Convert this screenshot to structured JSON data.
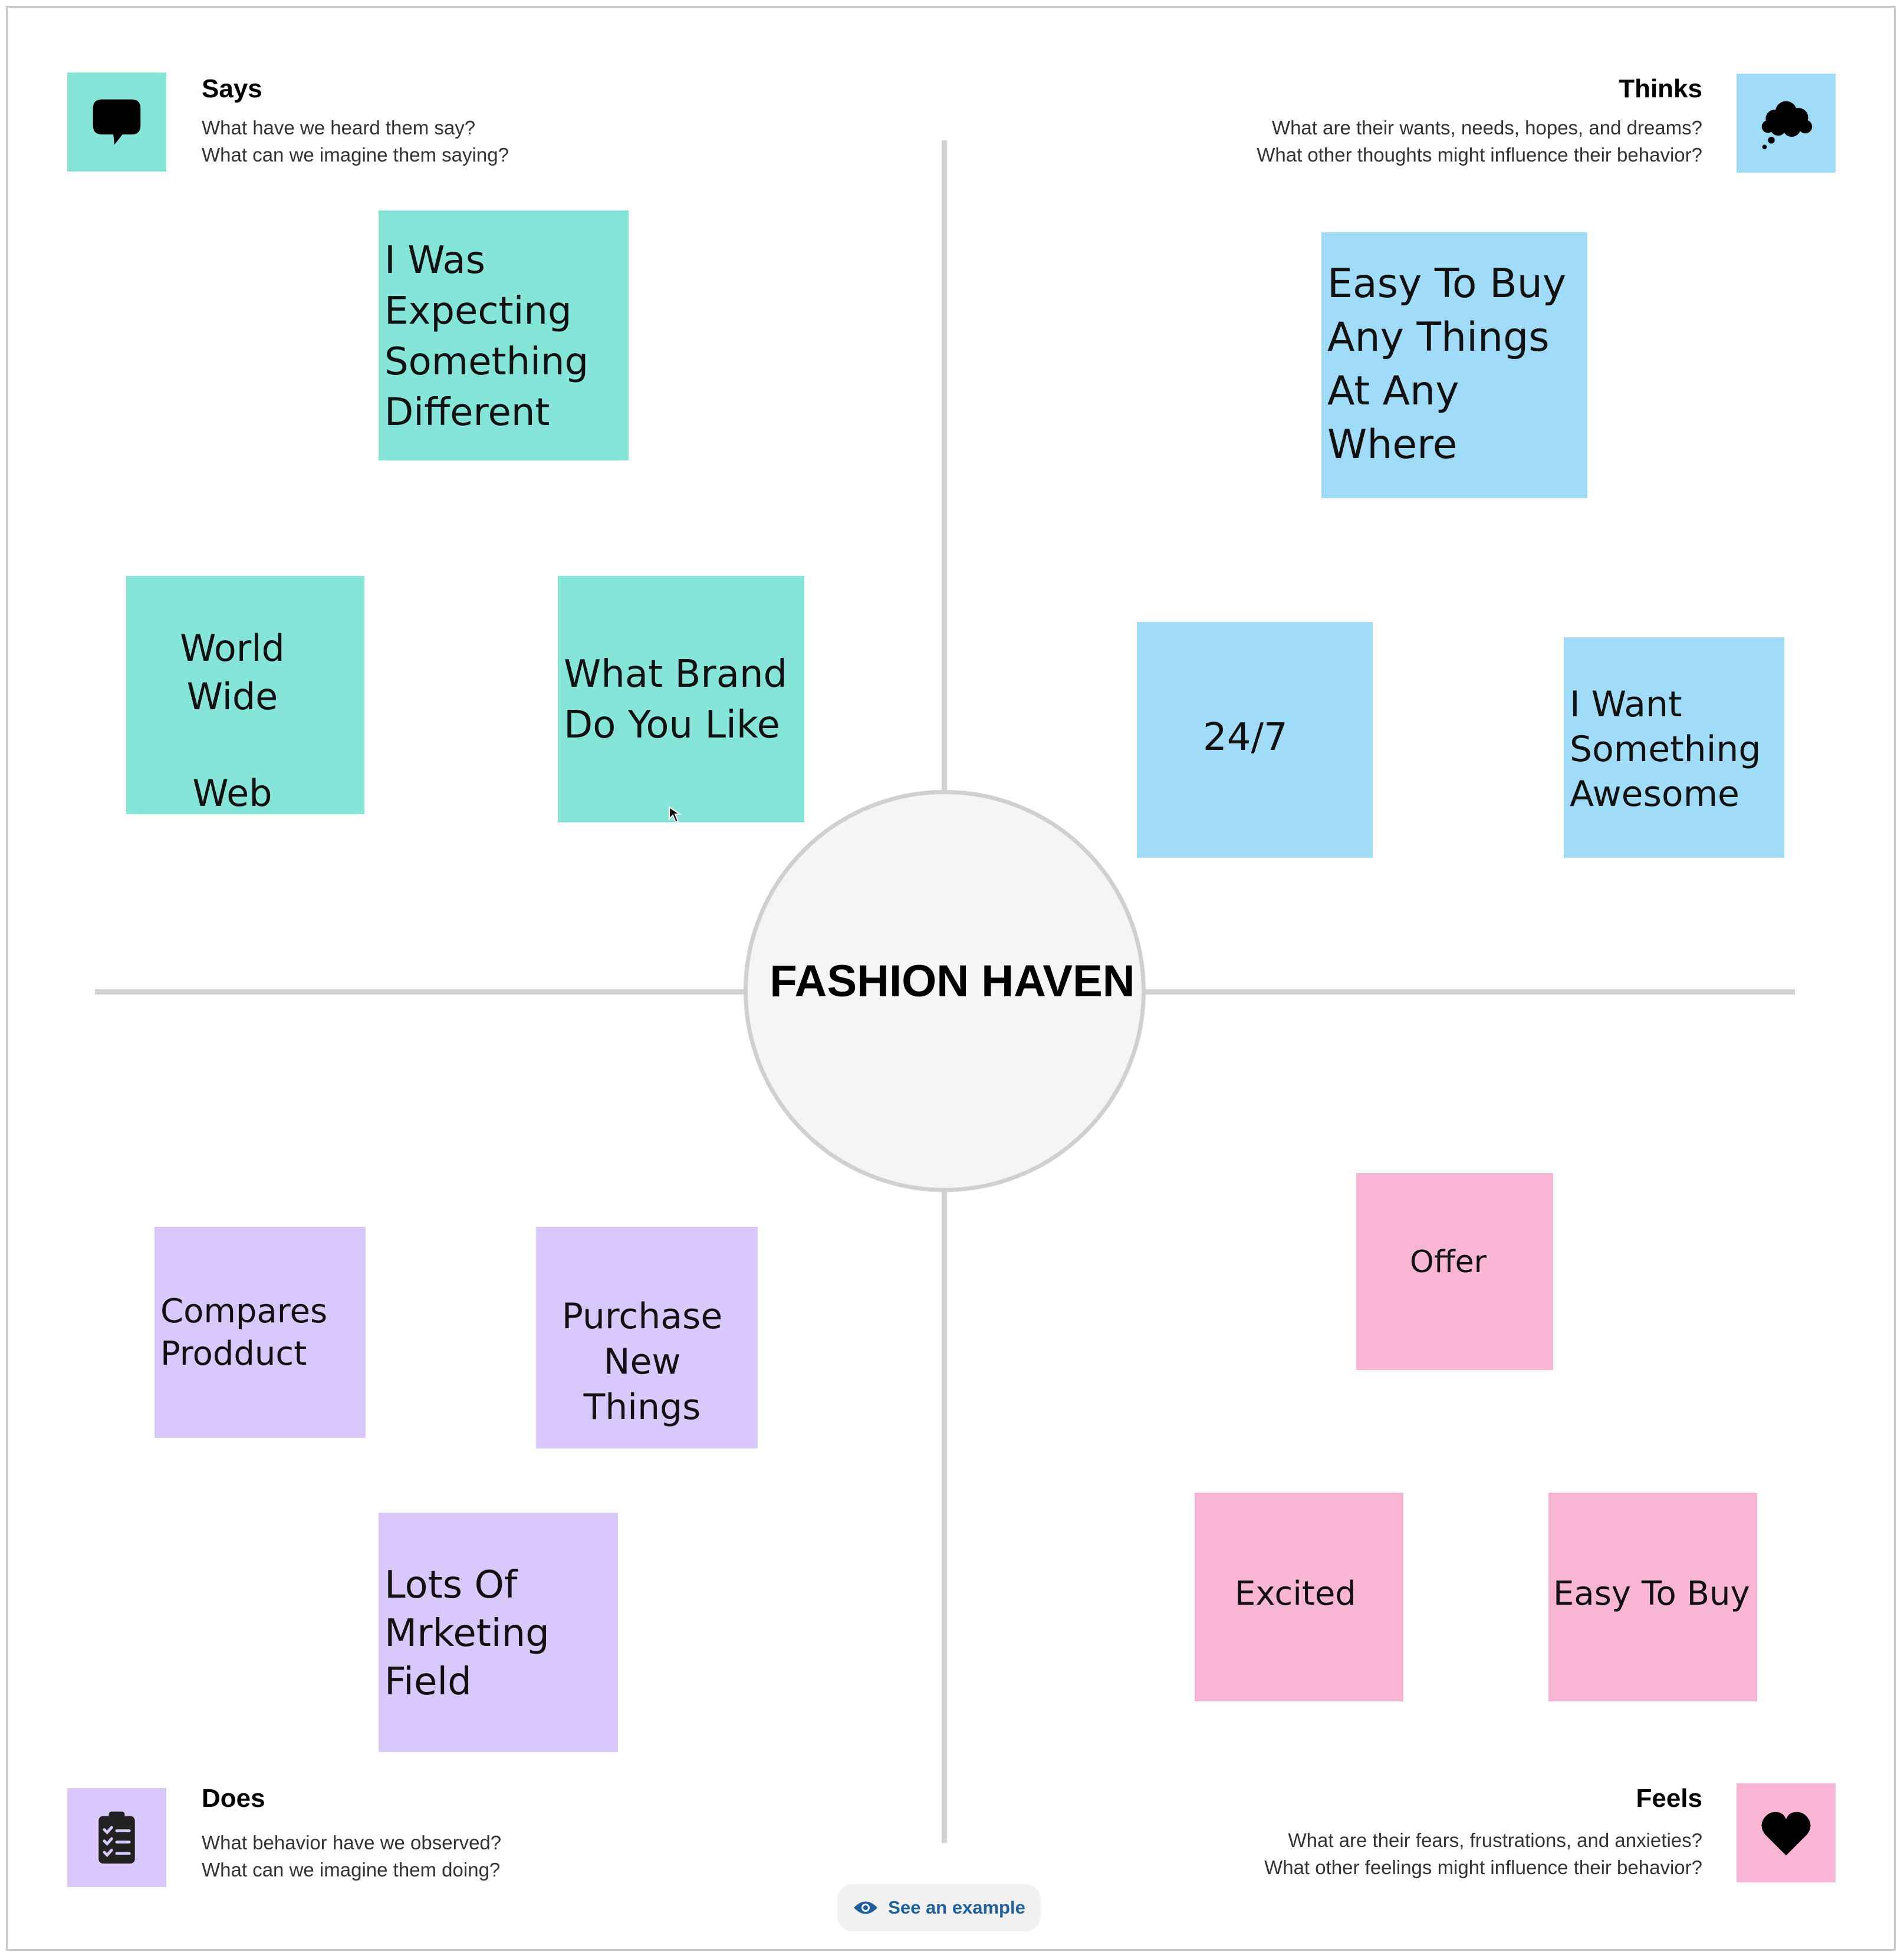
{
  "center": {
    "title": "FASHION HAVEN"
  },
  "quadrants": {
    "says": {
      "title": "Says",
      "lines": [
        "What have we heard them say?",
        "What can we imagine them saying?"
      ],
      "icon": "speech-bubble-icon",
      "color": "#86e5d9",
      "notes": [
        "I Was\nExpecting\nSomething\nDifferent",
        "World Wide\n\nWeb",
        "What Brand\nDo You Like"
      ]
    },
    "thinks": {
      "title": "Thinks",
      "lines": [
        "What are their wants, needs, hopes, and dreams?",
        "What other thoughts might influence their behavior?"
      ],
      "icon": "thought-cloud-icon",
      "color": "#a0dbf7",
      "notes": [
        "Easy To Buy\nAny Things\nAt Any\nWhere",
        "24/7",
        "I Want\nSomething\nAwesome"
      ]
    },
    "does": {
      "title": "Does",
      "lines": [
        "What behavior have we observed?",
        "What can we imagine them doing?"
      ],
      "icon": "clipboard-checklist-icon",
      "color": "#d8c8fb",
      "notes": [
        "Compares\nProdduct",
        "Purchase\nNew Things",
        "Lots Of\nMrketing\nField"
      ]
    },
    "feels": {
      "title": "Feels",
      "lines": [
        "What are their fears, frustrations, and anxieties?",
        "What other feelings might influence their behavior?"
      ],
      "icon": "heart-icon",
      "color": "#f9b5d4",
      "notes": [
        "Offer",
        "Excited",
        "Easy To Buy"
      ]
    }
  },
  "example_button": {
    "label": "See an example",
    "icon": "eye-icon"
  }
}
